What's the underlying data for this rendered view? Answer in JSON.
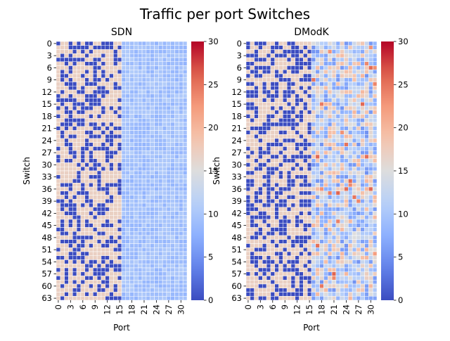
{
  "figure": {
    "title": "Traffic per port Switches"
  },
  "chart_data": [
    {
      "type": "heatmap",
      "title": "SDN",
      "xlabel": "Port",
      "ylabel": "Switch",
      "rows": 64,
      "cols": 32,
      "x_ticks": [
        0,
        3,
        6,
        9,
        12,
        15,
        18,
        21,
        24,
        27,
        30
      ],
      "y_ticks": [
        0,
        3,
        6,
        9,
        12,
        15,
        18,
        21,
        24,
        27,
        30,
        33,
        36,
        39,
        42,
        45,
        48,
        51,
        54,
        57,
        60,
        63
      ],
      "vmin": 0,
      "vmax": 30,
      "colormap": "coolwarm",
      "colorbar_ticks": [
        0,
        5,
        10,
        15,
        20,
        25,
        30
      ],
      "pattern_note": "ports 0-15 alternate between ~0 and ~17; ports 16-31 mostly ~9-11",
      "seed": 17,
      "port_values_low_block": [
        0,
        17
      ],
      "port_values_high_block_range": [
        8,
        11
      ]
    },
    {
      "type": "heatmap",
      "title": "DModK",
      "xlabel": "Port",
      "ylabel": "Switch",
      "rows": 64,
      "cols": 32,
      "x_ticks": [
        0,
        3,
        6,
        9,
        12,
        15,
        18,
        21,
        24,
        27,
        30
      ],
      "y_ticks": [
        0,
        3,
        6,
        9,
        12,
        15,
        18,
        21,
        24,
        27,
        30,
        33,
        36,
        39,
        42,
        45,
        48,
        51,
        54,
        57,
        60,
        63
      ],
      "vmin": 0,
      "vmax": 30,
      "colormap": "coolwarm",
      "colorbar_ticks": [
        0,
        5,
        10,
        15,
        20,
        25,
        30
      ],
      "pattern_note": "ports 0-15 alternate between ~0 and ~17; ports 16-31 vary ~5-20 with sparse outliers",
      "seed": 91,
      "port_values_low_block": [
        0,
        17
      ],
      "port_values_high_block_range": [
        5,
        20
      ]
    }
  ]
}
